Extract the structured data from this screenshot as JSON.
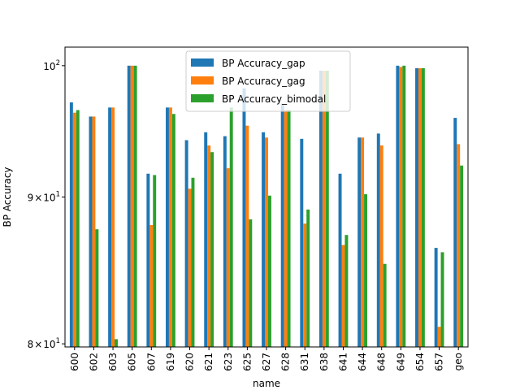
{
  "chart_data": {
    "type": "bar",
    "xlabel": "name",
    "ylabel": "BP Accuracy",
    "yscale": "log",
    "ylim": [
      79.8,
      101.5
    ],
    "legend_position": "top-center",
    "grid": false,
    "categories": [
      "600",
      "602",
      "603",
      "605",
      "607",
      "619",
      "620",
      "621",
      "623",
      "625",
      "627",
      "628",
      "631",
      "638",
      "641",
      "644",
      "648",
      "649",
      "654",
      "657",
      "geo"
    ],
    "series": [
      {
        "name": "BP Accuracy_gap",
        "color": "#1f77b4",
        "values": [
          97.1,
          96.0,
          96.7,
          100.0,
          91.7,
          96.7,
          94.2,
          94.8,
          94.5,
          98.2,
          94.8,
          97.0,
          94.3,
          99.6,
          91.7,
          94.4,
          94.7,
          100.0,
          99.8,
          86.4,
          95.9
        ]
      },
      {
        "name": "BP Accuracy_gag",
        "color": "#ff7f0e",
        "values": [
          96.3,
          96.0,
          96.7,
          100.0,
          88.0,
          96.7,
          90.6,
          93.8,
          92.1,
          95.3,
          94.4,
          96.5,
          88.1,
          99.6,
          86.6,
          94.4,
          93.8,
          99.9,
          99.8,
          81.1,
          93.9
        ]
      },
      {
        "name": "BP Accuracy_bimodal",
        "color": "#2ca02c",
        "values": [
          96.5,
          87.7,
          80.3,
          100.0,
          91.6,
          96.2,
          91.4,
          93.3,
          96.7,
          88.4,
          90.1,
          96.5,
          89.1,
          99.6,
          87.3,
          90.2,
          85.3,
          100.0,
          99.8,
          86.1,
          92.3
        ]
      }
    ],
    "yticks": [
      {
        "value": 80,
        "mantissa": "8",
        "exponent": "1"
      },
      {
        "value": 90,
        "mantissa": "9",
        "exponent": "1"
      },
      {
        "value": 100,
        "mantissa": "10",
        "exponent": "2"
      }
    ]
  }
}
